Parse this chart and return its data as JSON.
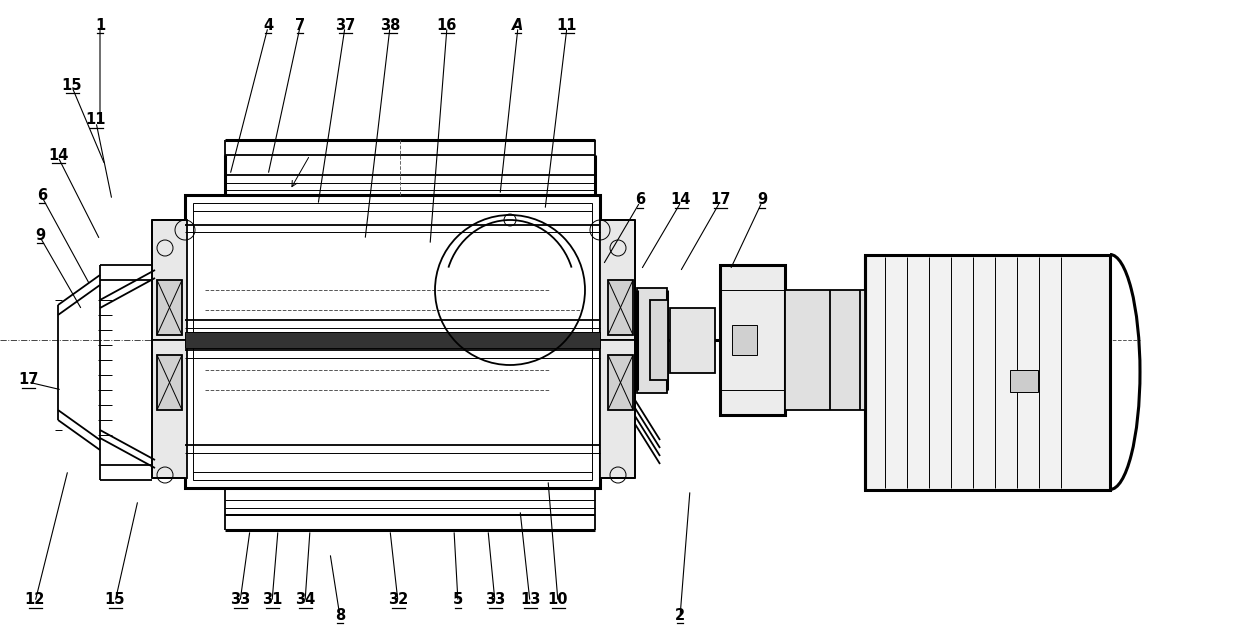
{
  "bg_color": "#ffffff",
  "line_color": "#000000",
  "fig_width": 12.4,
  "fig_height": 6.31,
  "dpi": 100,
  "label_fontsize": 10.5,
  "labels_top": [
    [
      "1",
      100,
      25,
      100,
      125
    ],
    [
      "4",
      268,
      25,
      230,
      175
    ],
    [
      "7",
      300,
      25,
      268,
      175
    ],
    [
      "37",
      345,
      25,
      318,
      205
    ],
    [
      "38",
      390,
      25,
      365,
      240
    ],
    [
      "16",
      447,
      25,
      430,
      245
    ],
    [
      "A",
      518,
      25,
      500,
      195
    ],
    [
      "11",
      567,
      25,
      545,
      210
    ]
  ],
  "labels_right_top": [
    [
      "6",
      640,
      200,
      603,
      265
    ],
    [
      "14",
      681,
      200,
      641,
      270
    ],
    [
      "17",
      720,
      200,
      680,
      272
    ],
    [
      "9",
      762,
      200,
      730,
      270
    ]
  ],
  "labels_left": [
    [
      "15",
      72,
      85,
      105,
      165
    ],
    [
      "11",
      96,
      120,
      112,
      200
    ],
    [
      "14",
      58,
      155,
      100,
      240
    ],
    [
      "6",
      42,
      195,
      90,
      285
    ],
    [
      "9",
      40,
      235,
      82,
      310
    ],
    [
      "17",
      28,
      380,
      62,
      390
    ]
  ],
  "labels_bottom": [
    [
      "12",
      35,
      600,
      68,
      470
    ],
    [
      "15",
      115,
      600,
      138,
      500
    ],
    [
      "33",
      240,
      600,
      250,
      530
    ],
    [
      "31",
      272,
      600,
      278,
      530
    ],
    [
      "34",
      305,
      600,
      310,
      530
    ],
    [
      "8",
      340,
      615,
      330,
      553
    ],
    [
      "32",
      398,
      600,
      390,
      530
    ],
    [
      "5",
      458,
      600,
      454,
      530
    ],
    [
      "33",
      495,
      600,
      488,
      530
    ],
    [
      "13",
      530,
      600,
      520,
      510
    ],
    [
      "10",
      558,
      600,
      548,
      480
    ],
    [
      "2",
      680,
      615,
      690,
      490
    ]
  ]
}
